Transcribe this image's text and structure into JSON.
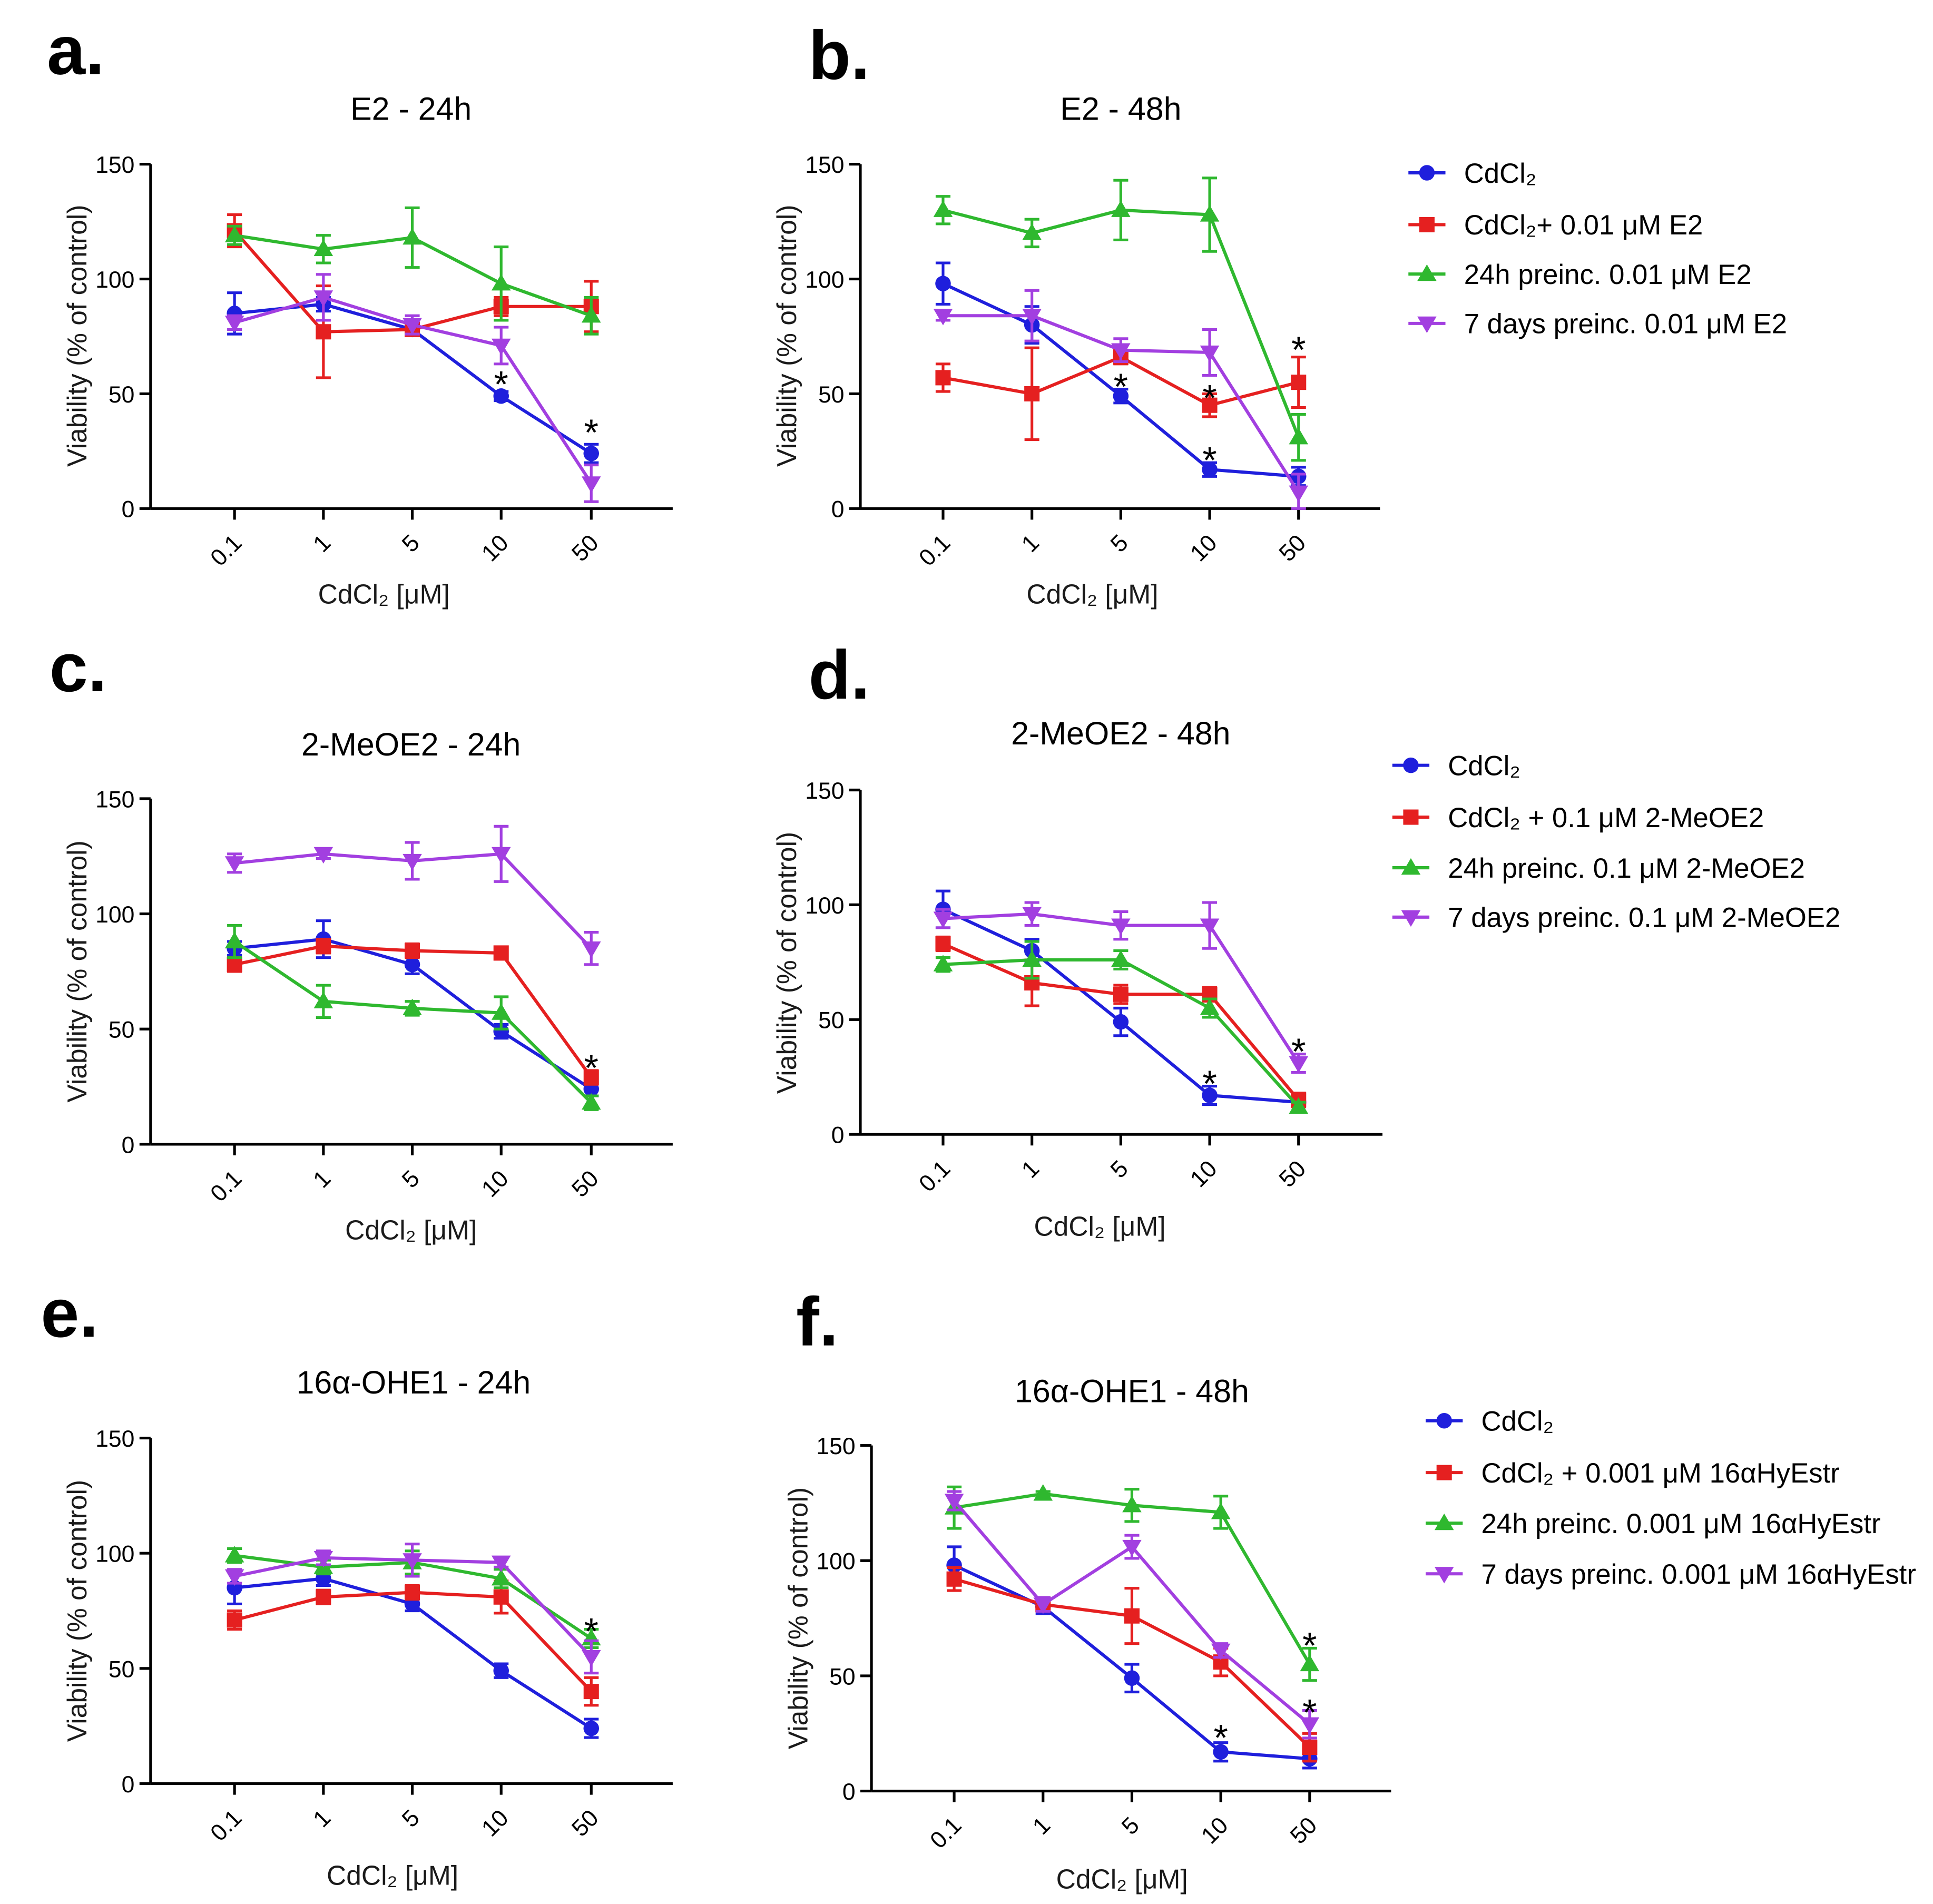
{
  "chart_data": [
    {
      "panel": "a.",
      "type": "line",
      "title": "E2 - 24h",
      "xlabel": "CdCl₂ [μM]",
      "ylabel": "Viability (% of control)",
      "categories": [
        "0.1",
        "1",
        "5",
        "10",
        "50"
      ],
      "ylim": [
        0,
        150
      ],
      "yticks": [
        0,
        50,
        100,
        150
      ],
      "series": [
        {
          "color": "#1f1fdc",
          "values": [
            85,
            89,
            78,
            49,
            24
          ],
          "errors": [
            9,
            3,
            2,
            2,
            4
          ]
        },
        {
          "color": "#e52020",
          "values": [
            121,
            77,
            78,
            88,
            88
          ],
          "errors": [
            7,
            20,
            2,
            4,
            11
          ]
        },
        {
          "color": "#2fb82f",
          "values": [
            119,
            113,
            118,
            98,
            84
          ],
          "errors": [
            4,
            6,
            13,
            16,
            8
          ]
        },
        {
          "color": "#a23fe0",
          "values": [
            81,
            92,
            80,
            71,
            11
          ],
          "errors": [
            3,
            10,
            4,
            8,
            8
          ]
        }
      ],
      "annotations": [
        {
          "x": 10,
          "y": 58,
          "text": "*"
        },
        {
          "x": 50,
          "y": 37,
          "text": "*"
        }
      ]
    },
    {
      "panel": "b.",
      "type": "line",
      "title": "E2 - 48h",
      "xlabel": "CdCl₂ [μM]",
      "ylabel": "Viability (% of control)",
      "categories": [
        "0.1",
        "1",
        "5",
        "10",
        "50"
      ],
      "ylim": [
        0,
        150
      ],
      "yticks": [
        0,
        50,
        100,
        150
      ],
      "legend": "right",
      "series": [
        {
          "name": "CdCl₂",
          "color": "#1f1fdc",
          "values": [
            98,
            80,
            49,
            17,
            14
          ],
          "errors": [
            9,
            8,
            3,
            3,
            4
          ]
        },
        {
          "name": "CdCl₂+ 0.01 μM E2",
          "color": "#e52020",
          "values": [
            57,
            50,
            66,
            45,
            55
          ],
          "errors": [
            6,
            20,
            3,
            5,
            11
          ]
        },
        {
          "name": "24h preinc. 0.01 μM E2",
          "color": "#2fb82f",
          "values": [
            130,
            120,
            130,
            128,
            31
          ],
          "errors": [
            6,
            6,
            13,
            16,
            10
          ]
        },
        {
          "name": "7 days preinc. 0.01 μM E2",
          "color": "#a23fe0",
          "values": [
            84,
            84,
            69,
            68,
            7
          ],
          "errors": [
            2,
            11,
            5,
            10,
            8
          ]
        }
      ],
      "annotations": [
        {
          "x": 5,
          "y": 57,
          "text": "*"
        },
        {
          "x": 10,
          "y": 52,
          "text": "*"
        },
        {
          "x": 10,
          "y": 25,
          "text": "*"
        },
        {
          "x": 50,
          "y": 73,
          "text": "*"
        }
      ]
    },
    {
      "panel": "c.",
      "type": "line",
      "title": "2-MeOE2 - 24h",
      "xlabel": "CdCl₂ [μM]",
      "ylabel": "Viability (% of control)",
      "categories": [
        "0.1",
        "1",
        "5",
        "10",
        "50"
      ],
      "ylim": [
        0,
        150
      ],
      "yticks": [
        0,
        50,
        100,
        150
      ],
      "series": [
        {
          "color": "#1f1fdc",
          "values": [
            85,
            89,
            78,
            49,
            24
          ],
          "errors": [
            3,
            8,
            4,
            3,
            3
          ]
        },
        {
          "color": "#e52020",
          "values": [
            78,
            86,
            84,
            83,
            29
          ],
          "errors": [
            3,
            3,
            3,
            2,
            3
          ]
        },
        {
          "color": "#2fb82f",
          "values": [
            88,
            62,
            59,
            57,
            18
          ],
          "errors": [
            7,
            7,
            3,
            7,
            3
          ]
        },
        {
          "color": "#a23fe0",
          "values": [
            122,
            126,
            123,
            126,
            85
          ],
          "errors": [
            4,
            2,
            8,
            12,
            7
          ]
        }
      ],
      "annotations": [
        {
          "x": 50,
          "y": 37,
          "text": "*"
        }
      ]
    },
    {
      "panel": "d.",
      "type": "line",
      "title": "2-MeOE2 - 48h",
      "xlabel": "CdCl₂ [μM]",
      "ylabel": "Viability (% of control)",
      "categories": [
        "0.1",
        "1",
        "5",
        "10",
        "50"
      ],
      "ylim": [
        0,
        150
      ],
      "yticks": [
        0,
        50,
        100,
        150
      ],
      "legend": "right",
      "series": [
        {
          "name": "CdCl₂",
          "color": "#1f1fdc",
          "values": [
            98,
            80,
            49,
            17,
            14
          ],
          "errors": [
            8,
            5,
            6,
            4,
            2
          ]
        },
        {
          "name": "CdCl₂ + 0.1 μM 2-MeOE2",
          "color": "#e52020",
          "values": [
            83,
            66,
            61,
            61,
            15
          ],
          "errors": [
            3,
            10,
            4,
            3,
            3
          ]
        },
        {
          "name": "24h preinc. 0.1 μM 2-MeOE2",
          "color": "#2fb82f",
          "values": [
            74,
            76,
            76,
            55,
            12
          ],
          "errors": [
            3,
            8,
            4,
            4,
            2
          ]
        },
        {
          "name": "7 days preinc. 0.1 μM 2-MeOE2",
          "color": "#a23fe0",
          "values": [
            94,
            96,
            91,
            91,
            31
          ],
          "errors": [
            4,
            5,
            6,
            10,
            4
          ]
        }
      ],
      "annotations": [
        {
          "x": 10,
          "y": 26,
          "text": "*"
        },
        {
          "x": 50,
          "y": 40,
          "text": "*"
        }
      ]
    },
    {
      "panel": "e.",
      "type": "line",
      "title": "16α-OHE1 - 24h",
      "xlabel": "CdCl₂ [μM]",
      "ylabel": "Viability (% of control)",
      "categories": [
        "0.1",
        "1",
        "5",
        "10",
        "50"
      ],
      "ylim": [
        0,
        150
      ],
      "yticks": [
        0,
        50,
        100,
        150
      ],
      "series": [
        {
          "color": "#1f1fdc",
          "values": [
            85,
            89,
            78,
            49,
            24
          ],
          "errors": [
            7,
            3,
            3,
            3,
            4
          ]
        },
        {
          "color": "#e52020",
          "values": [
            71,
            81,
            83,
            81,
            40
          ],
          "errors": [
            4,
            3,
            3,
            7,
            6
          ]
        },
        {
          "color": "#2fb82f",
          "values": [
            99,
            94,
            96,
            89,
            63
          ],
          "errors": [
            3,
            3,
            5,
            4,
            4
          ]
        },
        {
          "color": "#a23fe0",
          "values": [
            90,
            98,
            97,
            96,
            55
          ],
          "errors": [
            3,
            3,
            7,
            2,
            7
          ]
        }
      ],
      "annotations": [
        {
          "x": 50,
          "y": 70,
          "text": "*"
        }
      ]
    },
    {
      "panel": "f.",
      "type": "line",
      "title": "16α-OHE1 - 48h",
      "xlabel": "CdCl₂ [μM]",
      "ylabel": "Viability (% of control)",
      "categories": [
        "0.1",
        "1",
        "5",
        "10",
        "50"
      ],
      "ylim": [
        0,
        150
      ],
      "yticks": [
        0,
        50,
        100,
        150
      ],
      "legend": "right",
      "series": [
        {
          "name": "CdCl₂",
          "color": "#1f1fdc",
          "values": [
            98,
            80,
            49,
            17,
            14
          ],
          "errors": [
            8,
            3,
            6,
            4,
            4
          ]
        },
        {
          "name": "CdCl₂ + 0.001 μM 16αHyEstr",
          "color": "#e52020",
          "values": [
            92,
            81,
            76,
            56,
            19
          ],
          "errors": [
            5,
            3,
            12,
            6,
            6
          ]
        },
        {
          "name": "24h preinc. 0.001 μM 16αHyEstr",
          "color": "#2fb82f",
          "values": [
            123,
            129,
            124,
            121,
            55
          ],
          "errors": [
            9,
            1,
            7,
            7,
            7
          ]
        },
        {
          "name": "7 days preinc. 0.001 μM 16αHyEstr",
          "color": "#a23fe0",
          "values": [
            126,
            81,
            106,
            61,
            29
          ],
          "errors": [
            4,
            3,
            5,
            3,
            6
          ]
        }
      ],
      "annotations": [
        {
          "x": 10,
          "y": 27,
          "text": "*"
        },
        {
          "x": 50,
          "y": 67,
          "text": "*"
        },
        {
          "x": 50,
          "y": 38,
          "text": "*"
        }
      ]
    }
  ]
}
